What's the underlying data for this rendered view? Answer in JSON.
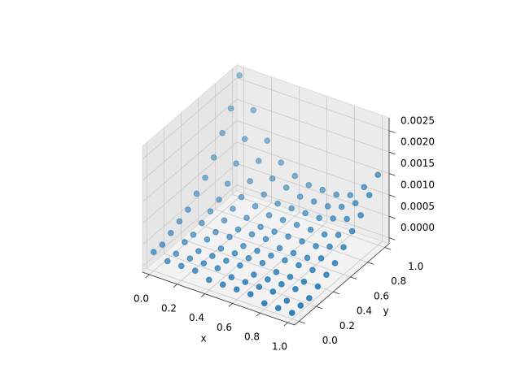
{
  "chart_data": {
    "type": "scatter3d",
    "x_label": "x",
    "y_label": "y",
    "xlim": [
      -0.05,
      1.05
    ],
    "ylim": [
      -0.05,
      1.05
    ],
    "zlim": [
      -0.00014,
      0.0028
    ],
    "xticks": [
      {
        "value": 0,
        "label": "0.0"
      },
      0.2,
      0.4,
      0.6,
      0.8,
      {
        "value": 1,
        "label": "1.0"
      }
    ],
    "yticks": [
      {
        "value": 0,
        "label": "0.0"
      },
      0.2,
      0.4,
      0.6,
      0.8,
      {
        "value": 1,
        "label": "1.0"
      }
    ],
    "zticks": [
      {
        "value": 0,
        "label": "0.0000"
      },
      0.0005,
      {
        "value": 0.001,
        "label": "0.0010"
      },
      0.0015,
      {
        "value": 0.002,
        "label": "0.0020"
      },
      0.0025
    ],
    "grid": true,
    "series": [
      {
        "color": "#1f77b4",
        "x": [
          0,
          0.1,
          0.2,
          0.3,
          0.4,
          0.5,
          0.6,
          0.7,
          0.8,
          0.9,
          1,
          0,
          0.1,
          0.2,
          0.3,
          0.4,
          0.5,
          0.6,
          0.7,
          0.8,
          0.9,
          1,
          0,
          0.1,
          0.2,
          0.3,
          0.4,
          0.5,
          0.6,
          0.7,
          0.8,
          0.9,
          1,
          0,
          0.1,
          0.2,
          0.3,
          0.4,
          0.5,
          0.6,
          0.7,
          0.8,
          0.9,
          1,
          0,
          0.1,
          0.2,
          0.3,
          0.4,
          0.5,
          0.6,
          0.7,
          0.8,
          0.9,
          1,
          0,
          0.1,
          0.2,
          0.3,
          0.4,
          0.5,
          0.6,
          0.7,
          0.8,
          0.9,
          1,
          0,
          0.1,
          0.2,
          0.3,
          0.4,
          0.5,
          0.6,
          0.7,
          0.8,
          0.9,
          1,
          0,
          0.1,
          0.2,
          0.3,
          0.4,
          0.5,
          0.6,
          0.7,
          0.8,
          0.9,
          1,
          0,
          0.1,
          0.2,
          0.3,
          0.4,
          0.5,
          0.6,
          0.7,
          0.8,
          0.9,
          1,
          0,
          0.1,
          0.2,
          0.3,
          0.4,
          0.5,
          0.6,
          0.7,
          0.8,
          0.9,
          1,
          0,
          0.1,
          0.2,
          0.3,
          0.4,
          0.5,
          0.6,
          0.7,
          0.8,
          0.9,
          1
        ],
        "y": [
          0,
          0,
          0,
          0,
          0,
          0,
          0,
          0,
          0,
          0,
          0,
          0.1,
          0.1,
          0.1,
          0.1,
          0.1,
          0.1,
          0.1,
          0.1,
          0.1,
          0.1,
          0.1,
          0.2,
          0.2,
          0.2,
          0.2,
          0.2,
          0.2,
          0.2,
          0.2,
          0.2,
          0.2,
          0.2,
          0.3,
          0.3,
          0.3,
          0.3,
          0.3,
          0.3,
          0.3,
          0.3,
          0.3,
          0.3,
          0.3,
          0.4,
          0.4,
          0.4,
          0.4,
          0.4,
          0.4,
          0.4,
          0.4,
          0.4,
          0.4,
          0.4,
          0.5,
          0.5,
          0.5,
          0.5,
          0.5,
          0.5,
          0.5,
          0.5,
          0.5,
          0.5,
          0.5,
          0.6,
          0.6,
          0.6,
          0.6,
          0.6,
          0.6,
          0.6,
          0.6,
          0.6,
          0.6,
          0.6,
          0.7,
          0.7,
          0.7,
          0.7,
          0.7,
          0.7,
          0.7,
          0.7,
          0.7,
          0.7,
          0.7,
          0.8,
          0.8,
          0.8,
          0.8,
          0.8,
          0.8,
          0.8,
          0.8,
          0.8,
          0.8,
          0.8,
          0.9,
          0.9,
          0.9,
          0.9,
          0.9,
          0.9,
          0.9,
          0.9,
          0.9,
          0.9,
          0.9,
          1,
          1,
          1,
          1,
          1,
          1,
          1,
          1,
          1,
          1,
          1
        ],
        "z": [
          0.0003,
          0.0002,
          0.0002,
          0.0002,
          0.0001,
          0.0001,
          0.0001,
          0.0001,
          0,
          0,
          0,
          0.0003,
          0.0002,
          0.0002,
          0.0002,
          0.0002,
          0.0001,
          0.0001,
          0.0001,
          0.0001,
          0,
          0,
          0.0004,
          0.0003,
          0.0002,
          0.0002,
          0.0002,
          0.0002,
          0.0001,
          0.0001,
          0.0001,
          0.0001,
          0,
          0.0005,
          0.0003,
          0.0003,
          0.0002,
          0.0002,
          0.0002,
          0.0002,
          0.0001,
          0.0001,
          0.0001,
          0.0001,
          0.0006,
          0.0004,
          0.0003,
          0.0003,
          0.0002,
          0.0002,
          0.0002,
          0.0002,
          0.0002,
          0.0002,
          0.0002,
          0.0008,
          0.0005,
          0.0004,
          0.0003,
          0.0003,
          0.0003,
          0.0002,
          0.0002,
          0.0002,
          0.0003,
          0.0003,
          0.001,
          0.0006,
          0.0005,
          0.0004,
          0.0003,
          0.0003,
          0.0003,
          0.0003,
          0.0003,
          0.0004,
          0.0005,
          0.0013,
          0.0008,
          0.0006,
          0.0005,
          0.0004,
          0.0004,
          0.0004,
          0.0004,
          0.0004,
          0.0005,
          0.0007,
          0.0017,
          0.0011,
          0.0008,
          0.0006,
          0.0005,
          0.0005,
          0.0005,
          0.0005,
          0.0006,
          0.0007,
          0.0009,
          0.0021,
          0.0015,
          0.0011,
          0.0008,
          0.0007,
          0.0006,
          0.0006,
          0.0006,
          0.0007,
          0.0009,
          0.0012,
          0.0027,
          0.002,
          0.0014,
          0.001,
          0.0008,
          0.0007,
          0.0007,
          0.0007,
          0.0008,
          0.0011,
          0.0015
        ]
      }
    ]
  }
}
